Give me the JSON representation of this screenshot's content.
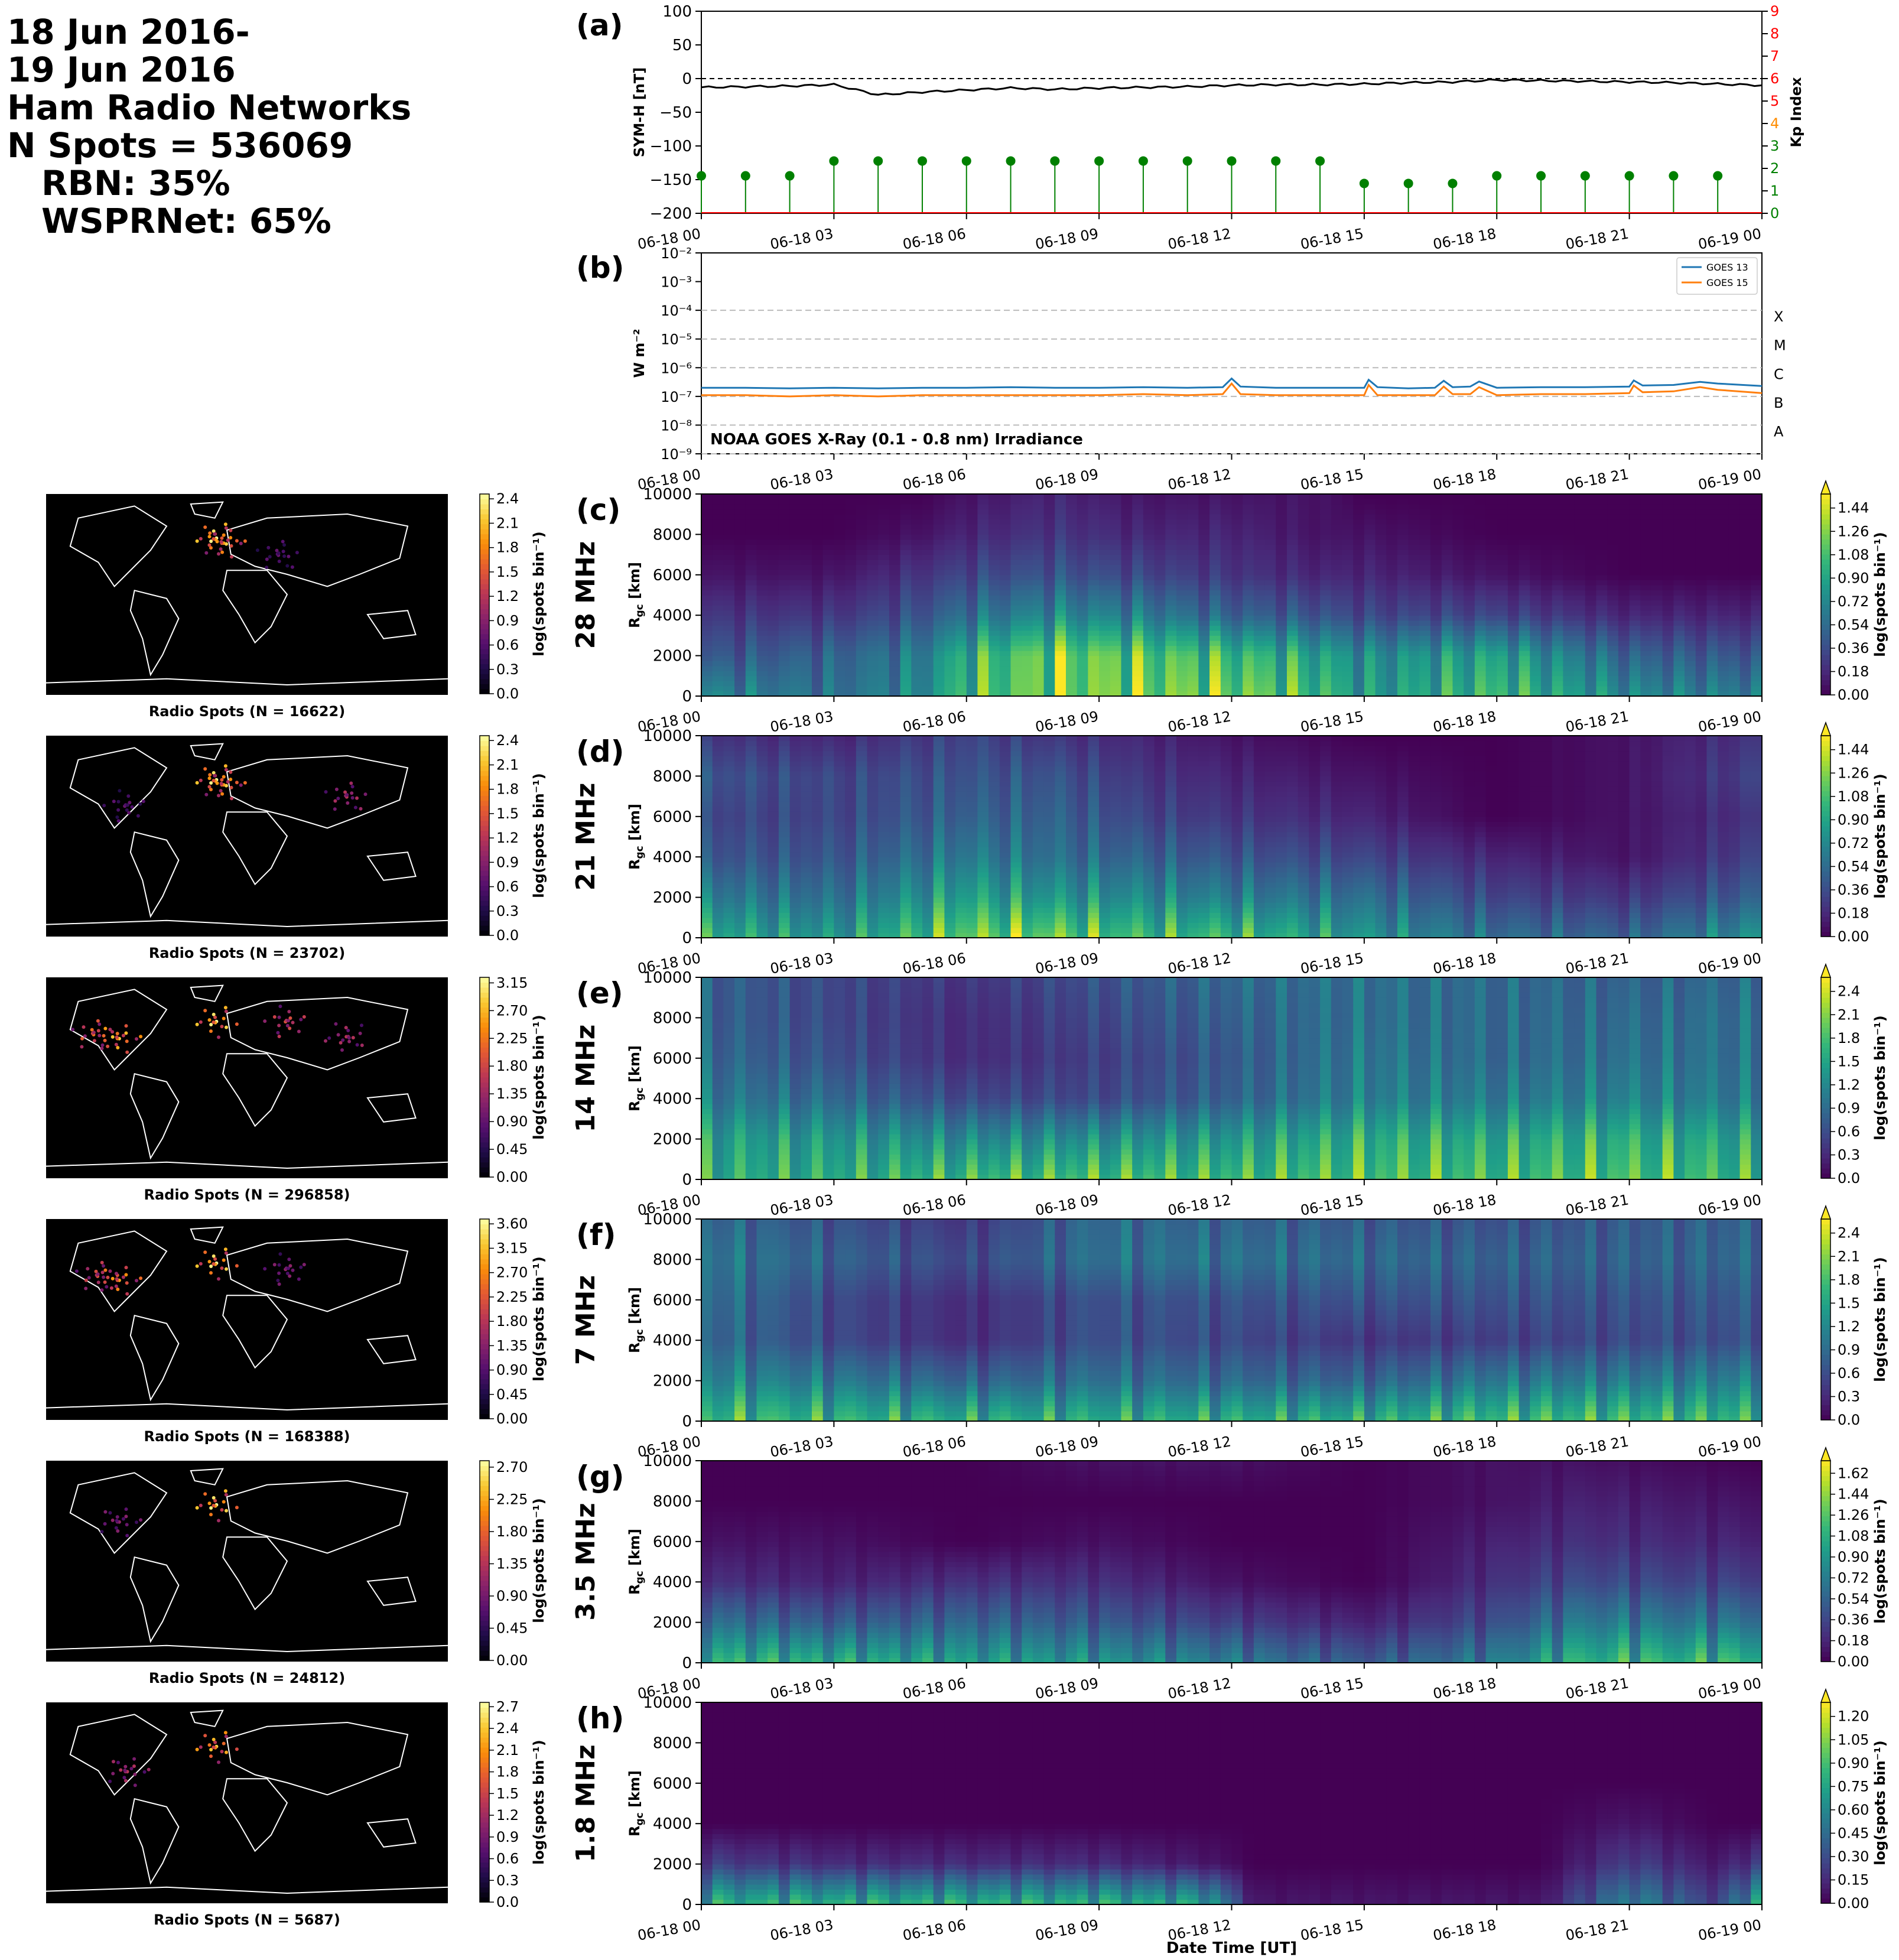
{
  "header": {
    "lines": [
      "18 Jun 2016-",
      "19 Jun 2016",
      "Ham Radio Networks",
      "N Spots = 536069"
    ],
    "sub_lines": [
      "RBN: 35%",
      "WSPRNet: 65%"
    ]
  },
  "colors": {
    "symh_line": "#000000",
    "kp_green": "#008000",
    "kp_orange": "#ff8c00",
    "kp_red": "#ff0000",
    "goes13": "#1f77b4",
    "goes15": "#ff7f0e",
    "map_bg": "#000000",
    "coast": "#ffffff"
  },
  "time_ticks": [
    "06-18 00",
    "06-18 03",
    "06-18 06",
    "06-18 09",
    "06-18 12",
    "06-18 15",
    "06-18 18",
    "06-18 21",
    "06-19 00"
  ],
  "xlabel": "Date Time [UT]",
  "chart_data": [
    {
      "panel": "(a)",
      "type": "line",
      "ylabel": "SYM-H [nT]",
      "ylim": [
        -200,
        100
      ],
      "yticks": [
        "100",
        "50",
        "0",
        "−50",
        "−100",
        "−150",
        "−200"
      ],
      "reference_line": 0,
      "x_hours": [
        0,
        1,
        2,
        3,
        4,
        5,
        6,
        7,
        8,
        9,
        10,
        11,
        12,
        13,
        14,
        15,
        16,
        17,
        18,
        19,
        20,
        21,
        22,
        23,
        24
      ],
      "symh": [
        -13,
        -12,
        -11,
        -9,
        -24,
        -20,
        -17,
        -14,
        -16,
        -14,
        -13,
        -12,
        -10,
        -9,
        -9,
        -8,
        -6,
        -5,
        -2,
        -3,
        -4,
        -5,
        -6,
        -8,
        -10
      ],
      "secondary_axis": {
        "ylabel": "Kp Index",
        "ylim": [
          0,
          9
        ],
        "yticks": [
          "0",
          "1",
          "2",
          "3",
          "4",
          "5",
          "6",
          "7",
          "8",
          "9"
        ],
        "tick_colors": [
          "#008000",
          "#008000",
          "#008000",
          "#008000",
          "#ff8c00",
          "#ff0000",
          "#ff0000",
          "#ff0000",
          "#ff0000",
          "#ff0000"
        ]
      },
      "kp_x_hours": [
        0,
        1,
        2,
        3,
        4,
        5,
        6,
        7,
        8,
        9,
        10,
        11,
        12,
        13,
        14,
        15,
        16,
        17,
        18,
        19,
        20,
        21,
        22,
        23
      ],
      "kp": [
        1.67,
        1.67,
        1.67,
        2.33,
        2.33,
        2.33,
        2.33,
        2.33,
        2.33,
        2.33,
        2.33,
        2.33,
        2.33,
        2.33,
        2.33,
        1.33,
        1.33,
        1.33,
        1.67,
        1.67,
        1.67,
        1.67,
        1.67,
        1.67
      ]
    },
    {
      "panel": "(b)",
      "type": "line",
      "ylabel": "W m⁻²",
      "yscale": "log",
      "ylim": [
        1e-09,
        0.01
      ],
      "yticks": [
        "10⁻²",
        "10⁻³",
        "10⁻⁴",
        "10⁻⁵",
        "10⁻⁶",
        "10⁻⁷",
        "10⁻⁸",
        "10⁻⁹"
      ],
      "flare_classes": [
        "X",
        "M",
        "C",
        "B",
        "A"
      ],
      "annotation": "NOAA GOES X-Ray (0.1 - 0.8 nm) Irradiance",
      "series": [
        {
          "name": "GOES 13",
          "x_hours": [
            0,
            1,
            2,
            3,
            4,
            5,
            6,
            7,
            8,
            9,
            10,
            11,
            11.8,
            12,
            12.2,
            13,
            14,
            15,
            15.1,
            15.3,
            16,
            16.6,
            16.8,
            17,
            17.4,
            17.6,
            18,
            19,
            20,
            21,
            21.1,
            21.3,
            22,
            22.6,
            23,
            24
          ],
          "values": [
            2e-07,
            2e-07,
            1.9e-07,
            2e-07,
            1.9e-07,
            2e-07,
            2e-07,
            2.1e-07,
            2e-07,
            2e-07,
            2.1e-07,
            2e-07,
            2.1e-07,
            4.2e-07,
            2.2e-07,
            2e-07,
            2e-07,
            2e-07,
            3.8e-07,
            2.1e-07,
            1.9e-07,
            2e-07,
            3.5e-07,
            2.1e-07,
            2.2e-07,
            3.3e-07,
            2e-07,
            2.1e-07,
            2.1e-07,
            2.2e-07,
            3.6e-07,
            2.4e-07,
            2.5e-07,
            3.2e-07,
            2.8e-07,
            2.3e-07
          ]
        },
        {
          "name": "GOES 15",
          "x_hours": [
            0,
            1,
            2,
            3,
            4,
            5,
            6,
            7,
            8,
            9,
            10,
            11,
            11.8,
            12,
            12.2,
            13,
            14,
            15,
            15.1,
            15.3,
            16,
            16.6,
            16.8,
            17,
            17.4,
            17.6,
            18,
            19,
            20,
            21,
            21.1,
            21.3,
            22,
            22.6,
            23,
            24
          ],
          "values": [
            1.1e-07,
            1.1e-07,
            1e-07,
            1.1e-07,
            1e-07,
            1.1e-07,
            1.1e-07,
            1.1e-07,
            1.1e-07,
            1.1e-07,
            1.2e-07,
            1.1e-07,
            1.2e-07,
            2.8e-07,
            1.2e-07,
            1.1e-07,
            1.1e-07,
            1.1e-07,
            2.5e-07,
            1.1e-07,
            1.1e-07,
            1.1e-07,
            2.2e-07,
            1.2e-07,
            1.2e-07,
            2.1e-07,
            1.1e-07,
            1.2e-07,
            1.2e-07,
            1.3e-07,
            2.4e-07,
            1.4e-07,
            1.5e-07,
            2.1e-07,
            1.7e-07,
            1.3e-07
          ]
        }
      ]
    },
    {
      "panel": "(c)",
      "band": "28 MHz",
      "type": "heatmap",
      "map_label": "Radio Spots (N = 16622)",
      "map_cbar_ticks": [
        "0.0",
        "0.3",
        "0.6",
        "0.9",
        "1.2",
        "1.5",
        "1.8",
        "2.1",
        "2.4"
      ],
      "ylabel": "R_gc [km]",
      "ylim": [
        0,
        10000
      ],
      "yticks": [
        "0",
        "2000",
        "4000",
        "6000",
        "8000",
        "10000"
      ],
      "cbar_label": "log(spots bin⁻¹)",
      "cbar_ticks": [
        "0.00",
        "0.18",
        "0.36",
        "0.54",
        "0.72",
        "0.90",
        "1.08",
        "1.26",
        "1.44"
      ],
      "profile": [
        [
          0,
          0.9,
          0.5,
          0.3,
          0.1,
          0.0,
          0.0
        ],
        [
          3,
          0.7,
          0.6,
          0.3,
          0.1,
          0.0,
          0.0
        ],
        [
          5,
          0.9,
          0.8,
          0.5,
          0.3,
          0.1,
          0.0
        ],
        [
          6,
          1.3,
          1.2,
          0.7,
          0.4,
          0.2,
          0.1
        ],
        [
          8,
          1.5,
          1.5,
          0.9,
          0.5,
          0.3,
          0.2
        ],
        [
          10,
          1.5,
          1.4,
          0.8,
          0.4,
          0.2,
          0.1
        ],
        [
          12,
          1.5,
          1.3,
          0.6,
          0.3,
          0.2,
          0.1
        ],
        [
          14,
          1.3,
          1.1,
          0.5,
          0.2,
          0.1,
          0.1
        ],
        [
          15,
          1.0,
          0.9,
          0.4,
          0.2,
          0.1,
          0.0
        ],
        [
          18,
          1.3,
          1.1,
          0.4,
          0.1,
          0.0,
          0.0
        ],
        [
          21,
          0.9,
          0.6,
          0.2,
          0.0,
          0.0,
          0.0
        ],
        [
          24,
          0.8,
          0.5,
          0.2,
          0.0,
          0.0,
          0.0
        ]
      ]
    },
    {
      "panel": "(d)",
      "band": "21 MHz",
      "type": "heatmap",
      "map_label": "Radio Spots (N = 23702)",
      "map_cbar_ticks": [
        "0.0",
        "0.3",
        "0.6",
        "0.9",
        "1.2",
        "1.5",
        "1.8",
        "2.1",
        "2.4"
      ],
      "ylabel": "R_gc [km]",
      "ylim": [
        0,
        10000
      ],
      "yticks": [
        "0",
        "2000",
        "4000",
        "6000",
        "8000",
        "10000"
      ],
      "cbar_label": "log(spots bin⁻¹)",
      "cbar_ticks": [
        "0.00",
        "0.18",
        "0.36",
        "0.54",
        "0.72",
        "0.90",
        "1.08",
        "1.26",
        "1.44"
      ],
      "profile": [
        [
          0,
          1.2,
          0.8,
          0.5,
          0.4,
          0.5,
          0.3
        ],
        [
          3,
          1.0,
          0.7,
          0.5,
          0.4,
          0.4,
          0.2
        ],
        [
          6,
          1.5,
          1.1,
          0.8,
          0.6,
          0.5,
          0.4
        ],
        [
          8,
          1.5,
          1.0,
          0.7,
          0.6,
          0.5,
          0.3
        ],
        [
          10,
          1.3,
          0.9,
          0.6,
          0.4,
          0.3,
          0.2
        ],
        [
          12,
          1.3,
          0.8,
          0.5,
          0.3,
          0.2,
          0.1
        ],
        [
          15,
          1.0,
          0.7,
          0.4,
          0.2,
          0.1,
          0.0
        ],
        [
          18,
          0.7,
          0.4,
          0.2,
          0.0,
          0.0,
          0.0
        ],
        [
          21,
          0.6,
          0.3,
          0.1,
          0.1,
          0.1,
          0.1
        ],
        [
          24,
          1.0,
          0.6,
          0.4,
          0.3,
          0.4,
          0.3
        ]
      ]
    },
    {
      "panel": "(e)",
      "band": "14 MHz",
      "type": "heatmap",
      "map_label": "Radio Spots (N = 296858)",
      "map_cbar_ticks": [
        "0.00",
        "0.45",
        "0.90",
        "1.35",
        "1.80",
        "2.25",
        "2.70",
        "3.15"
      ],
      "ylabel": "R_gc [km]",
      "ylim": [
        0,
        10000
      ],
      "yticks": [
        "0",
        "2000",
        "4000",
        "6000",
        "8000",
        "10000"
      ],
      "cbar_label": "log(spots bin⁻¹)",
      "cbar_ticks": [
        "0.0",
        "0.3",
        "0.6",
        "0.9",
        "1.2",
        "1.5",
        "1.8",
        "2.1",
        "2.4"
      ],
      "profile": [
        [
          0,
          2.0,
          1.8,
          1.3,
          1.1,
          1.0,
          1.0
        ],
        [
          3,
          2.0,
          1.7,
          1.1,
          0.8,
          0.7,
          0.7
        ],
        [
          6,
          2.2,
          1.5,
          0.7,
          0.4,
          0.4,
          0.5
        ],
        [
          9,
          2.3,
          1.6,
          0.7,
          0.6,
          0.7,
          0.8
        ],
        [
          12,
          2.2,
          1.7,
          1.0,
          0.9,
          1.0,
          1.1
        ],
        [
          15,
          2.3,
          2.0,
          1.4,
          1.3,
          1.2,
          1.2
        ],
        [
          18,
          2.2,
          1.9,
          1.3,
          1.1,
          1.1,
          1.1
        ],
        [
          21,
          2.3,
          2.0,
          1.4,
          1.2,
          1.1,
          1.0
        ],
        [
          24,
          2.1,
          1.8,
          1.3,
          1.2,
          1.2,
          1.1
        ]
      ]
    },
    {
      "panel": "(f)",
      "band": "7 MHz",
      "type": "heatmap",
      "map_label": "Radio Spots (N = 168388)",
      "map_cbar_ticks": [
        "0.00",
        "0.45",
        "0.90",
        "1.35",
        "1.80",
        "2.25",
        "2.70",
        "3.15",
        "3.60"
      ],
      "ylabel": "R_gc [km]",
      "ylim": [
        0,
        10000
      ],
      "yticks": [
        "0",
        "2000",
        "4000",
        "6000",
        "8000",
        "10000"
      ],
      "cbar_label": "log(spots bin⁻¹)",
      "cbar_ticks": [
        "0.0",
        "0.3",
        "0.6",
        "0.9",
        "1.2",
        "1.5",
        "1.8",
        "2.1",
        "2.4"
      ],
      "profile": [
        [
          0,
          2.2,
          1.5,
          1.1,
          1.2,
          1.3,
          1.1
        ],
        [
          3,
          2.1,
          1.3,
          0.7,
          0.7,
          1.0,
          0.8
        ],
        [
          6,
          2.0,
          1.0,
          0.4,
          0.4,
          0.7,
          0.5
        ],
        [
          9,
          2.0,
          1.2,
          0.8,
          0.8,
          1.2,
          1.1
        ],
        [
          12,
          2.0,
          1.1,
          0.7,
          0.8,
          1.2,
          1.0
        ],
        [
          15,
          2.0,
          1.0,
          0.5,
          0.8,
          1.1,
          0.9
        ],
        [
          18,
          2.2,
          1.3,
          0.6,
          0.8,
          1.0,
          0.8
        ],
        [
          21,
          2.2,
          1.3,
          0.7,
          0.8,
          1.0,
          0.9
        ],
        [
          24,
          2.1,
          1.4,
          0.8,
          0.9,
          1.1,
          1.0
        ]
      ]
    },
    {
      "panel": "(g)",
      "band": "3.5 MHz",
      "type": "heatmap",
      "map_label": "Radio Spots (N = 24812)",
      "map_cbar_ticks": [
        "0.00",
        "0.45",
        "0.90",
        "1.35",
        "1.80",
        "2.25",
        "2.70"
      ],
      "ylabel": "R_gc [km]",
      "ylim": [
        0,
        10000
      ],
      "yticks": [
        "0",
        "2000",
        "4000",
        "6000",
        "8000",
        "10000"
      ],
      "cbar_label": "log(spots bin⁻¹)",
      "cbar_ticks": [
        "0.00",
        "0.18",
        "0.36",
        "0.54",
        "0.72",
        "0.90",
        "1.08",
        "1.26",
        "1.44",
        "1.62"
      ],
      "profile": [
        [
          0,
          1.4,
          0.8,
          0.3,
          0.1,
          0.0,
          0.0
        ],
        [
          3,
          1.3,
          0.6,
          0.2,
          0.1,
          0.0,
          0.0
        ],
        [
          6,
          1.2,
          0.7,
          0.3,
          0.0,
          0.0,
          0.0
        ],
        [
          9,
          1.1,
          0.6,
          0.3,
          0.1,
          0.0,
          0.1
        ],
        [
          12,
          0.9,
          0.4,
          0.1,
          0.0,
          0.0,
          0.1
        ],
        [
          15,
          0.6,
          0.2,
          0.0,
          0.0,
          0.0,
          0.0
        ],
        [
          18,
          0.9,
          0.5,
          0.3,
          0.2,
          0.1,
          0.1
        ],
        [
          20,
          1.4,
          0.9,
          0.5,
          0.3,
          0.2,
          0.1
        ],
        [
          24,
          1.4,
          0.8,
          0.4,
          0.2,
          0.1,
          0.0
        ]
      ]
    },
    {
      "panel": "(h)",
      "band": "1.8 MHz",
      "type": "heatmap",
      "map_label": "Radio Spots (N = 5687)",
      "map_cbar_ticks": [
        "0.0",
        "0.3",
        "0.6",
        "0.9",
        "1.2",
        "1.5",
        "1.8",
        "2.1",
        "2.4",
        "2.7"
      ],
      "ylabel": "R_gc [km]",
      "ylim": [
        0,
        10000
      ],
      "yticks": [
        "0",
        "2000",
        "4000",
        "6000",
        "8000",
        "10000"
      ],
      "cbar_label": "log(spots bin⁻¹)",
      "cbar_ticks": [
        "0.00",
        "0.15",
        "0.30",
        "0.45",
        "0.60",
        "0.75",
        "0.90",
        "1.05",
        "1.20"
      ],
      "profile": [
        [
          0,
          1.0,
          0.3,
          0.0,
          0.0,
          0.0,
          0.0
        ],
        [
          3,
          1.0,
          0.2,
          0.0,
          0.0,
          0.0,
          0.0
        ],
        [
          6,
          1.0,
          0.2,
          0.0,
          0.0,
          0.0,
          0.0
        ],
        [
          9,
          1.0,
          0.2,
          0.0,
          0.0,
          0.0,
          0.0
        ],
        [
          11.5,
          0.9,
          0.1,
          0.0,
          0.0,
          0.0,
          0.0
        ],
        [
          12.5,
          0.1,
          0.0,
          0.0,
          0.0,
          0.0,
          0.0
        ],
        [
          19,
          0.1,
          0.0,
          0.0,
          0.0,
          0.0,
          0.0
        ],
        [
          21,
          0.7,
          0.3,
          0.1,
          0.0,
          0.0,
          0.0
        ],
        [
          23,
          0.3,
          0.1,
          0.0,
          0.0,
          0.0,
          0.0
        ],
        [
          24,
          1.0,
          0.3,
          0.0,
          0.0,
          0.0,
          0.0
        ]
      ]
    }
  ]
}
